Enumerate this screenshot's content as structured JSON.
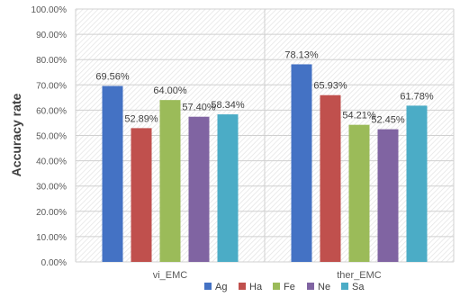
{
  "chart_data": {
    "type": "bar",
    "title": "",
    "xlabel": "",
    "ylabel": "Accuracy rate",
    "ylim": [
      0,
      100
    ],
    "ytick_step": 10,
    "ytick_format": "percent_2dp",
    "grid": true,
    "plot_background": "hatched",
    "legend_position": "bottom",
    "categories": [
      "vi_EMC",
      "ther_EMC"
    ],
    "series": [
      {
        "name": "Ag",
        "color": "#4472C4",
        "values": [
          69.56,
          78.13
        ],
        "labels": [
          "69.56%",
          "78.13%"
        ]
      },
      {
        "name": "Ha",
        "color": "#C0504D",
        "values": [
          52.89,
          65.93
        ],
        "labels": [
          "52.89%",
          "65.93%"
        ]
      },
      {
        "name": "Fe",
        "color": "#9BBB59",
        "values": [
          64.0,
          54.21
        ],
        "labels": [
          "64.00%",
          "54.21%"
        ]
      },
      {
        "name": "Ne",
        "color": "#8064A2",
        "values": [
          57.4,
          52.45
        ],
        "labels": [
          "57.40%",
          "52.45%"
        ]
      },
      {
        "name": "Sa",
        "color": "#4BACC6",
        "values": [
          58.34,
          61.78
        ],
        "labels": [
          "58.34%",
          "61.78%"
        ]
      }
    ]
  }
}
